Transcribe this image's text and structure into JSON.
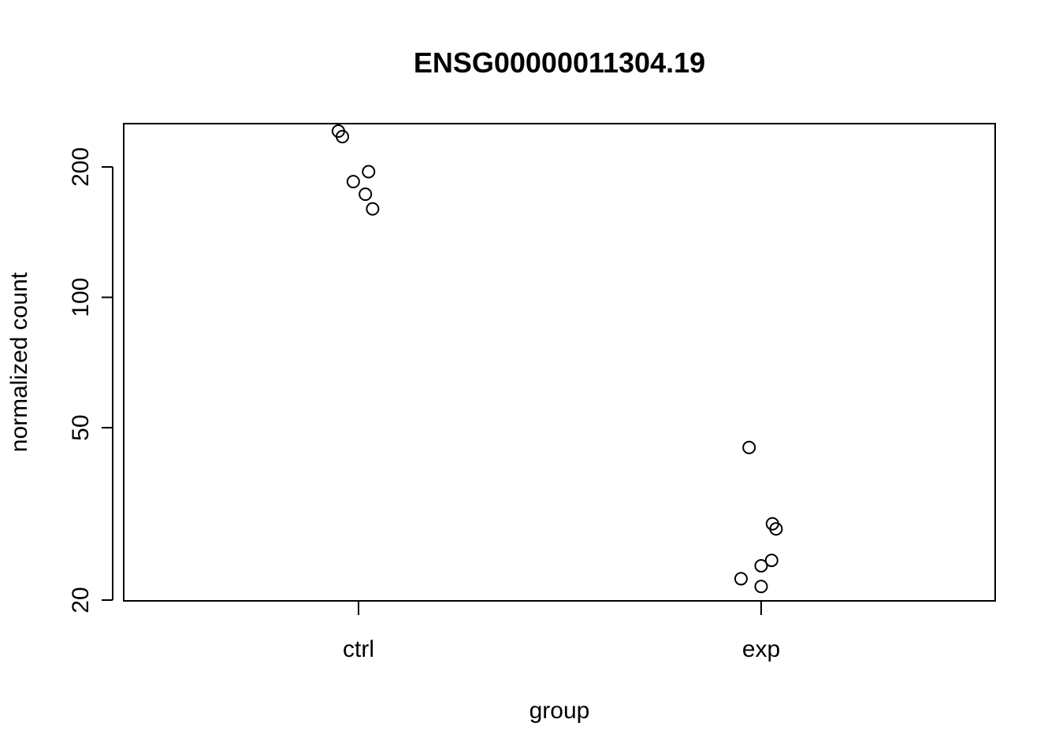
{
  "chart_data": {
    "type": "scatter",
    "title": "ENSG00000011304.19",
    "xlabel": "group",
    "ylabel": "normalized count",
    "y_scale": "log",
    "ylim": [
      20,
      258
    ],
    "x_categories": [
      "ctrl",
      "exp"
    ],
    "y_ticks": [
      20,
      50,
      100,
      200
    ],
    "y_tick_labels": [
      "20",
      "50",
      "100",
      "200"
    ],
    "grid": false,
    "legend": "none",
    "marker": "open-circle",
    "points": [
      {
        "group": "ctrl",
        "jitter": -0.05,
        "y": 242
      },
      {
        "group": "ctrl",
        "jitter": -0.04,
        "y": 235
      },
      {
        "group": "ctrl",
        "jitter": 0.025,
        "y": 195
      },
      {
        "group": "ctrl",
        "jitter": -0.013,
        "y": 185
      },
      {
        "group": "ctrl",
        "jitter": 0.017,
        "y": 173
      },
      {
        "group": "ctrl",
        "jitter": 0.035,
        "y": 160
      },
      {
        "group": "exp",
        "jitter": -0.03,
        "y": 45
      },
      {
        "group": "exp",
        "jitter": 0.028,
        "y": 30
      },
      {
        "group": "exp",
        "jitter": 0.037,
        "y": 29.2
      },
      {
        "group": "exp",
        "jitter": 0.026,
        "y": 24.7
      },
      {
        "group": "exp",
        "jitter": 0.0,
        "y": 24.0
      },
      {
        "group": "exp",
        "jitter": -0.05,
        "y": 22.4
      },
      {
        "group": "exp",
        "jitter": 0.0,
        "y": 21.5
      }
    ]
  }
}
